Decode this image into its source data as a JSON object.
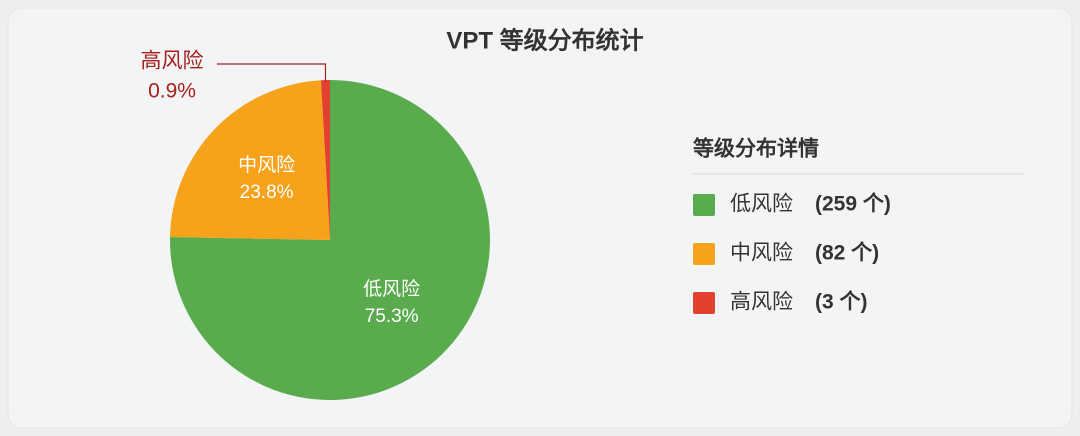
{
  "chart_data": {
    "type": "pie",
    "title": "VPT 等级分布统计",
    "legend_title": "等级分布详情",
    "categories": [
      "低风险",
      "中风险",
      "高风险"
    ],
    "values": [
      75.3,
      23.8,
      0.9
    ],
    "value_labels": [
      "75.3%",
      "23.8%",
      "0.9%"
    ],
    "counts": [
      259,
      82,
      3
    ],
    "count_labels": [
      "(259 个)",
      "(82 个)",
      "(3 个)"
    ],
    "colors": [
      "#5aab4e",
      "#f7a21b",
      "#e2412f"
    ]
  }
}
